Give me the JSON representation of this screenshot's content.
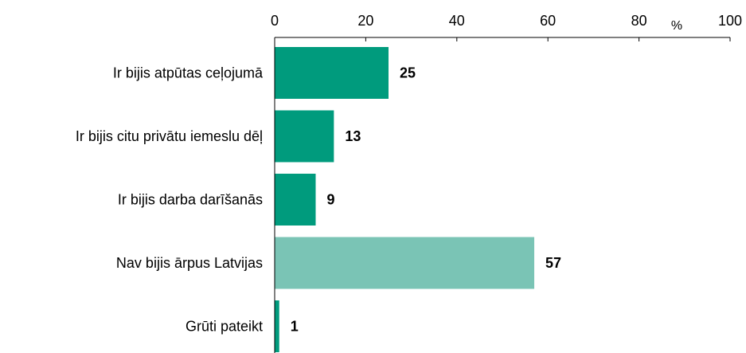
{
  "chart_data": {
    "type": "hbar",
    "x_label": "%",
    "categories": [
      "Ir bijis atpūtas ceļojumā",
      "Ir bijis citu privātu iemeslu dēļ",
      "Ir bijis darba darīšanās",
      "Nav bijis ārpus Latvijas",
      "Grūti pateikt"
    ],
    "values": [
      25,
      13,
      9,
      57,
      1
    ],
    "colors": [
      "#009b7d",
      "#009b7d",
      "#009b7d",
      "#7ac4b5",
      "#009b7d"
    ],
    "xlim": [
      0,
      100
    ],
    "xticks": [
      0,
      20,
      40,
      60,
      80,
      100
    ],
    "grid": false
  }
}
